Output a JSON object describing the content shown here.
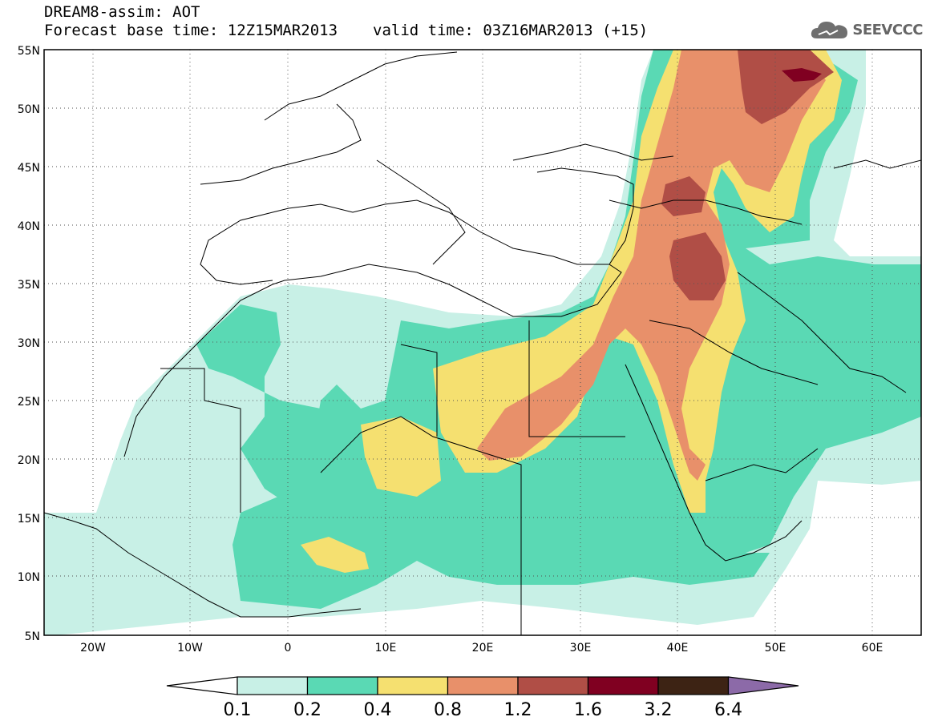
{
  "header": {
    "title": "DREAM8-assim: AOT",
    "base_time": "Forecast base time: 12Z15MAR2013",
    "valid_time": "valid time: 03Z16MAR2013 (+15)",
    "logo": "SEEVCCC"
  },
  "map": {
    "lon_range": [
      -25,
      65
    ],
    "lat_range": [
      5,
      55
    ],
    "lat_ticks": [
      "5N",
      "10N",
      "15N",
      "20N",
      "25N",
      "30N",
      "35N",
      "40N",
      "45N",
      "50N",
      "55N"
    ],
    "lon_ticks": [
      "20W",
      "10W",
      "0",
      "10E",
      "20E",
      "30E",
      "40E",
      "50E",
      "60E"
    ],
    "gridlines": "dotted"
  },
  "colorbar": {
    "levels": [
      "0.1",
      "0.2",
      "0.4",
      "0.8",
      "1.2",
      "1.6",
      "3.2",
      "6.4"
    ],
    "colors": [
      "#ffffff",
      "#c8f0e6",
      "#5ad9b4",
      "#f5e070",
      "#e8906a",
      "#b04e46",
      "#800021",
      "#3d2314",
      "#8c6aa8"
    ]
  }
}
